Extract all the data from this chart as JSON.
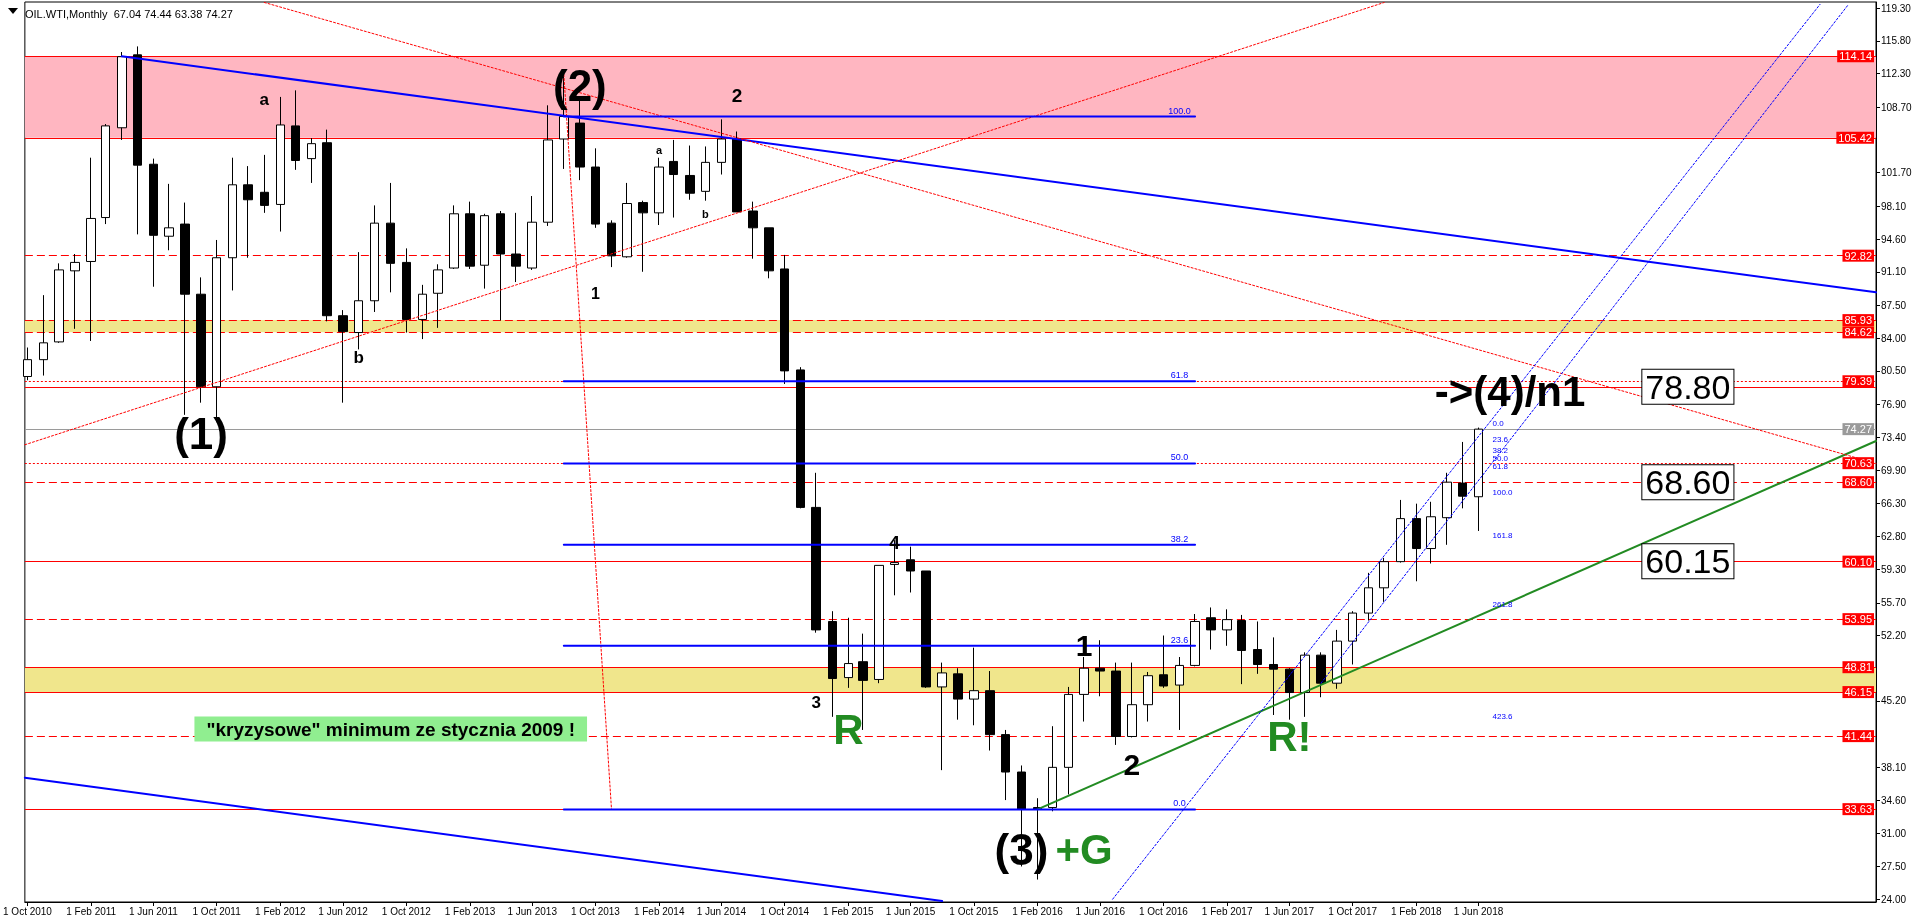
{
  "chart_data": {
    "type": "candlestick",
    "title": "OIL.WTI,Monthly  67.04 74.44 63.38 74.27",
    "x": [
      "2010-10",
      "2010-11",
      "2010-12",
      "2011-01",
      "2011-02",
      "2011-03",
      "2011-04",
      "2011-05",
      "2011-06",
      "2011-07",
      "2011-08",
      "2011-09",
      "2011-10",
      "2011-11",
      "2011-12",
      "2012-01",
      "2012-02",
      "2012-03",
      "2012-04",
      "2012-05",
      "2012-06",
      "2012-07",
      "2012-08",
      "2012-09",
      "2012-10",
      "2012-11",
      "2012-12",
      "2013-01",
      "2013-02",
      "2013-03",
      "2013-04",
      "2013-05",
      "2013-06",
      "2013-07",
      "2013-08",
      "2013-09",
      "2013-10",
      "2013-11",
      "2013-12",
      "2014-01",
      "2014-02",
      "2014-03",
      "2014-04",
      "2014-05",
      "2014-06",
      "2014-07",
      "2014-08",
      "2014-09",
      "2014-10",
      "2014-11",
      "2014-12",
      "2015-01",
      "2015-02",
      "2015-03",
      "2015-04",
      "2015-05",
      "2015-06",
      "2015-07",
      "2015-08",
      "2015-09",
      "2015-10",
      "2015-11",
      "2015-12",
      "2016-01",
      "2016-02",
      "2016-03",
      "2016-04",
      "2016-05",
      "2016-06",
      "2016-07",
      "2016-08",
      "2016-09",
      "2016-10",
      "2016-11",
      "2016-12",
      "2017-01",
      "2017-02",
      "2017-03",
      "2017-04",
      "2017-05",
      "2017-06",
      "2017-07",
      "2017-08",
      "2017-09",
      "2017-10",
      "2017-11",
      "2017-12",
      "2018-01",
      "2018-02",
      "2018-03",
      "2018-04",
      "2018-05",
      "2018-06"
    ],
    "ohlc": [
      [
        79.9,
        83.0,
        79.5,
        81.7
      ],
      [
        81.7,
        88.6,
        80.0,
        83.5
      ],
      [
        83.6,
        92.0,
        83.5,
        91.3
      ],
      [
        91.2,
        93.0,
        85.0,
        92.1
      ],
      [
        92.2,
        103.3,
        83.7,
        96.8
      ],
      [
        96.9,
        106.9,
        96.2,
        106.7
      ],
      [
        106.5,
        114.6,
        105.2,
        114.1
      ],
      [
        114.3,
        115.2,
        95.1,
        102.5
      ],
      [
        102.6,
        103.2,
        89.5,
        95.0
      ],
      [
        94.9,
        100.5,
        93.4,
        95.8
      ],
      [
        96.2,
        98.5,
        75.8,
        88.7
      ],
      [
        88.7,
        90.5,
        77.1,
        78.8
      ],
      [
        78.8,
        94.5,
        75.0,
        92.6
      ],
      [
        92.6,
        103.3,
        89.1,
        100.4
      ],
      [
        100.4,
        102.4,
        92.6,
        98.8
      ],
      [
        99.6,
        103.6,
        97.4,
        98.2
      ],
      [
        98.3,
        109.8,
        95.4,
        106.8
      ],
      [
        106.7,
        110.5,
        102.0,
        103.0
      ],
      [
        103.2,
        105.4,
        100.6,
        104.8
      ],
      [
        104.9,
        106.3,
        85.8,
        86.4
      ],
      [
        86.4,
        87.0,
        77.1,
        84.7
      ],
      [
        84.6,
        93.2,
        82.8,
        88.0
      ],
      [
        88.0,
        98.2,
        86.8,
        96.3
      ],
      [
        96.3,
        100.6,
        88.9,
        92.0
      ],
      [
        92.1,
        93.6,
        84.6,
        86.0
      ],
      [
        86.0,
        89.7,
        83.9,
        88.7
      ],
      [
        88.8,
        91.9,
        85.1,
        91.3
      ],
      [
        91.5,
        98.2,
        91.4,
        97.3
      ],
      [
        97.3,
        98.6,
        91.4,
        91.7
      ],
      [
        91.8,
        97.3,
        89.3,
        97.1
      ],
      [
        97.3,
        97.6,
        85.9,
        93.0
      ],
      [
        93.0,
        97.4,
        90.0,
        91.7
      ],
      [
        91.5,
        99.2,
        91.3,
        96.4
      ],
      [
        96.4,
        108.9,
        96.0,
        105.2
      ],
      [
        105.3,
        112.2,
        102.1,
        107.7
      ],
      [
        107.0,
        109.7,
        100.9,
        102.3
      ],
      [
        102.3,
        104.3,
        95.8,
        96.2
      ],
      [
        96.3,
        96.6,
        91.6,
        92.8
      ],
      [
        92.7,
        100.6,
        92.6,
        98.4
      ],
      [
        98.5,
        98.7,
        91.1,
        97.4
      ],
      [
        97.4,
        103.3,
        96.1,
        102.3
      ],
      [
        102.9,
        105.2,
        96.9,
        101.5
      ],
      [
        101.4,
        104.6,
        98.8,
        99.5
      ],
      [
        99.7,
        104.5,
        98.7,
        102.8
      ],
      [
        102.8,
        107.4,
        101.5,
        105.3
      ],
      [
        105.3,
        106.1,
        97.5,
        97.5
      ],
      [
        97.6,
        98.6,
        92.5,
        95.8
      ],
      [
        95.8,
        95.8,
        90.4,
        91.2
      ],
      [
        91.4,
        92.9,
        79.1,
        80.5
      ],
      [
        80.6,
        80.9,
        65.8,
        65.9
      ],
      [
        65.9,
        69.6,
        52.5,
        52.8
      ],
      [
        53.7,
        54.8,
        43.5,
        47.6
      ],
      [
        47.7,
        54.1,
        46.6,
        49.2
      ],
      [
        49.4,
        52.4,
        42.1,
        47.4
      ],
      [
        47.5,
        59.7,
        47.1,
        59.7
      ],
      [
        59.8,
        62.4,
        56.5,
        60.0
      ],
      [
        60.3,
        61.7,
        56.8,
        59.1
      ],
      [
        59.1,
        59.1,
        46.6,
        46.7
      ],
      [
        46.7,
        49.3,
        37.8,
        48.2
      ],
      [
        48.1,
        48.7,
        43.2,
        45.4
      ],
      [
        45.4,
        50.9,
        42.6,
        46.3
      ],
      [
        46.3,
        48.4,
        39.9,
        41.6
      ],
      [
        41.6,
        42.1,
        34.6,
        37.6
      ],
      [
        37.6,
        38.3,
        27.5,
        33.6
      ],
      [
        33.8,
        34.8,
        26.1,
        33.6
      ],
      [
        33.8,
        42.5,
        33.4,
        38.1
      ],
      [
        38.1,
        46.7,
        35.2,
        45.9
      ],
      [
        45.9,
        49.9,
        43.0,
        48.7
      ],
      [
        48.7,
        51.7,
        45.7,
        48.4
      ],
      [
        48.4,
        49.3,
        40.5,
        41.4
      ],
      [
        41.4,
        49.3,
        41.3,
        44.8
      ],
      [
        44.8,
        48.3,
        43.0,
        47.9
      ],
      [
        48.0,
        52.2,
        46.6,
        46.8
      ],
      [
        46.9,
        49.9,
        42.1,
        49.0
      ],
      [
        49.0,
        54.5,
        48.9,
        53.7
      ],
      [
        54.1,
        55.2,
        50.7,
        52.8
      ],
      [
        52.8,
        55.0,
        51.1,
        53.9
      ],
      [
        53.8,
        54.4,
        47.0,
        50.6
      ],
      [
        50.7,
        53.7,
        48.1,
        49.1
      ],
      [
        49.1,
        52.0,
        43.7,
        48.6
      ],
      [
        48.6,
        48.7,
        43.2,
        46.1
      ],
      [
        46.1,
        50.4,
        43.5,
        50.1
      ],
      [
        50.1,
        50.4,
        45.6,
        47.1
      ],
      [
        47.1,
        52.8,
        46.5,
        51.6
      ],
      [
        51.6,
        54.8,
        49.1,
        54.6
      ],
      [
        54.6,
        58.9,
        53.8,
        57.3
      ],
      [
        57.3,
        60.5,
        55.8,
        60.1
      ],
      [
        60.1,
        66.7,
        60.0,
        64.7
      ],
      [
        64.7,
        66.3,
        58.0,
        61.5
      ],
      [
        61.5,
        66.5,
        59.9,
        64.9
      ],
      [
        64.8,
        69.6,
        61.9,
        68.6
      ],
      [
        68.5,
        72.9,
        65.8,
        67.1
      ],
      [
        67.04,
        74.44,
        63.38,
        74.27
      ]
    ],
    "series": [
      {
        "type": "line",
        "x": [
          "2011-04",
          "2020-07-07"
        ],
        "values": [
          114.14,
          88.9
        ],
        "color": "#0000ff",
        "line_style": "solid"
      },
      {
        "type": "line",
        "x": [
          "2010-09-26",
          "2015-08"
        ],
        "values": [
          37.0,
          23.8
        ],
        "color": "#0000ff",
        "line_style": "solid"
      },
      {
        "type": "line",
        "x": [
          "2016-02",
          "2020-07-07"
        ],
        "values": [
          33.6,
          73.0
        ],
        "color": "#228b22",
        "line_style": "solid"
      },
      {
        "type": "line",
        "x": [
          "2010-09-26",
          "2017-12"
        ],
        "values": [
          72.6,
          119.9
        ],
        "color": "#ff0000",
        "line_style": "dotted"
      },
      {
        "type": "line",
        "x": [
          "2012-01",
          "2020-07-07"
        ],
        "values": [
          119.9,
          70.6
        ],
        "color": "#ff0000",
        "line_style": "dotted"
      },
      {
        "type": "line",
        "x": [
          "2013-08",
          "2013-11"
        ],
        "values": [
          112.2,
          33.6
        ],
        "color": "#ff0000",
        "line_style": "dotted"
      },
      {
        "type": "line",
        "x": [
          "2016-06-25",
          "2020-03-21"
        ],
        "values": [
          24.0,
          119.7
        ],
        "color": "#0000ff",
        "line_style": "dotted"
      },
      {
        "type": "line",
        "x": [
          "2017-08",
          "2020-05-15"
        ],
        "values": [
          47.1,
          119.7
        ],
        "color": "#0000ff",
        "line_style": "dotted"
      },
      {
        "type": "line",
        "x": [
          "2013-08",
          "2016-12"
        ],
        "values": [
          107.7,
          107.7
        ],
        "color": "#0000ff",
        "line_style": "solid"
      },
      {
        "type": "line",
        "x": [
          "2013-08",
          "2016-12"
        ],
        "values": [
          79.4,
          79.4
        ],
        "color": "#0000ff",
        "line_style": "solid"
      },
      {
        "type": "line",
        "x": [
          "2013-08",
          "2016-12"
        ],
        "values": [
          70.6,
          70.6
        ],
        "color": "#0000ff",
        "line_style": "solid"
      },
      {
        "type": "line",
        "x": [
          "2013-08",
          "2016-12"
        ],
        "values": [
          61.9,
          61.9
        ],
        "color": "#0000ff",
        "line_style": "solid"
      },
      {
        "type": "line",
        "x": [
          "2013-08",
          "2016-12"
        ],
        "values": [
          51.1,
          51.1
        ],
        "color": "#0000ff",
        "line_style": "solid"
      },
      {
        "type": "line",
        "x": [
          "2013-08",
          "2016-12"
        ],
        "values": [
          33.6,
          33.6
        ],
        "color": "#0000ff",
        "line_style": "solid"
      }
    ],
    "xlim": [
      "2010-09-26",
      "2020-07-07"
    ],
    "xticks": [
      {
        "value": "2010-10",
        "label": "1 Oct 2010"
      },
      {
        "value": "2011-02",
        "label": "1 Feb 2011"
      },
      {
        "value": "2011-06",
        "label": "1 Jun 2011"
      },
      {
        "value": "2011-10",
        "label": "1 Oct 2011"
      },
      {
        "value": "2012-02",
        "label": "1 Feb 2012"
      },
      {
        "value": "2012-06",
        "label": "1 Jun 2012"
      },
      {
        "value": "2012-10",
        "label": "1 Oct 2012"
      },
      {
        "value": "2013-02",
        "label": "1 Feb 2013"
      },
      {
        "value": "2013-06",
        "label": "1 Jun 2013"
      },
      {
        "value": "2013-10",
        "label": "1 Oct 2013"
      },
      {
        "value": "2014-02",
        "label": "1 Feb 2014"
      },
      {
        "value": "2014-06",
        "label": "1 Jun 2014"
      },
      {
        "value": "2014-10",
        "label": "1 Oct 2014"
      },
      {
        "value": "2015-02",
        "label": "1 Feb 2015"
      },
      {
        "value": "2015-06",
        "label": "1 Jun 2015"
      },
      {
        "value": "2015-10",
        "label": "1 Oct 2015"
      },
      {
        "value": "2016-02",
        "label": "1 Feb 2016"
      },
      {
        "value": "2016-06",
        "label": "1 Jun 2016"
      },
      {
        "value": "2016-10",
        "label": "1 Oct 2016"
      },
      {
        "value": "2017-02",
        "label": "1 Feb 2017"
      },
      {
        "value": "2017-06",
        "label": "1 Jun 2017"
      },
      {
        "value": "2017-10",
        "label": "1 Oct 2017"
      },
      {
        "value": "2018-02",
        "label": "1 Feb 2018"
      },
      {
        "value": "2018-06",
        "label": "1 Jun 2018"
      }
    ],
    "ylim": [
      23.7,
      119.95
    ],
    "yticks": [
      {
        "value": 119.3,
        "label": "119.30"
      },
      {
        "value": 115.8,
        "label": "115.80"
      },
      {
        "value": 112.3,
        "label": "112.30"
      },
      {
        "value": 108.7,
        "label": "108.70"
      },
      {
        "value": 101.7,
        "label": "101.70"
      },
      {
        "value": 98.1,
        "label": "98.10"
      },
      {
        "value": 94.6,
        "label": "94.60"
      },
      {
        "value": 91.1,
        "label": "91.10"
      },
      {
        "value": 87.5,
        "label": "87.50"
      },
      {
        "value": 84.0,
        "label": "84.00"
      },
      {
        "value": 80.5,
        "label": "80.50"
      },
      {
        "value": 76.9,
        "label": "76.90"
      },
      {
        "value": 73.4,
        "label": "73.40"
      },
      {
        "value": 69.9,
        "label": "69.90"
      },
      {
        "value": 66.3,
        "label": "66.30"
      },
      {
        "value": 62.8,
        "label": "62.80"
      },
      {
        "value": 59.3,
        "label": "59.30"
      },
      {
        "value": 55.7,
        "label": "55.70"
      },
      {
        "value": 52.2,
        "label": "52.20"
      },
      {
        "value": 45.2,
        "label": "45.20"
      },
      {
        "value": 38.1,
        "label": "38.10"
      },
      {
        "value": 34.6,
        "label": "34.60"
      },
      {
        "value": 31.0,
        "label": "31.00"
      },
      {
        "value": 27.5,
        "label": "27.50"
      },
      {
        "value": 24.0,
        "label": "24.00"
      }
    ],
    "ref_lines": [
      {
        "axis": "y",
        "value": 114.14,
        "label": "114.14",
        "color": "#ff0000",
        "line_style": "solid"
      },
      {
        "axis": "y",
        "value": 105.42,
        "label": "105.42",
        "color": "#ff0000",
        "line_style": "solid"
      },
      {
        "axis": "y",
        "value": 92.82,
        "label": "92.82",
        "color": "#ff0000",
        "line_style": "dashed"
      },
      {
        "axis": "y",
        "value": 85.93,
        "label": "85.93",
        "color": "#ff0000",
        "line_style": "dashed"
      },
      {
        "axis": "y",
        "value": 84.62,
        "label": "84.62",
        "color": "#ff0000",
        "line_style": "dashed"
      },
      {
        "axis": "y",
        "value": 79.39,
        "label": "79.39",
        "color": "#ff0000",
        "line_style": "dotted"
      },
      {
        "axis": "y",
        "value": 78.78,
        "label": null,
        "color": "#ff0000",
        "line_style": "solid"
      },
      {
        "axis": "y",
        "value": 74.27,
        "label": "74.27",
        "color": "#9a9a9a",
        "line_style": "solid"
      },
      {
        "axis": "y",
        "value": 70.63,
        "label": "70.63",
        "color": "#ff0000",
        "line_style": "dotted"
      },
      {
        "axis": "y",
        "value": 68.6,
        "label": "68.60",
        "color": "#ff0000",
        "line_style": "dashed"
      },
      {
        "axis": "y",
        "value": 60.1,
        "label": "60.10",
        "color": "#ff0000",
        "line_style": "solid"
      },
      {
        "axis": "y",
        "value": 53.95,
        "label": "53.95",
        "color": "#ff0000",
        "line_style": "dashed"
      },
      {
        "axis": "y",
        "value": 48.81,
        "label": "48.81",
        "color": "#ff0000",
        "line_style": "solid"
      },
      {
        "axis": "y",
        "value": 46.15,
        "label": "46.15",
        "color": "#ff0000",
        "line_style": "solid"
      },
      {
        "axis": "y",
        "value": 41.44,
        "label": "41.44",
        "color": "#ff0000",
        "line_style": "dashed"
      },
      {
        "axis": "y",
        "value": 33.63,
        "label": "33.63",
        "color": "#ff0000",
        "line_style": "solid"
      }
    ],
    "bands": [
      {
        "axis": "y",
        "from": 105.42,
        "to": 114.14,
        "color": "#ffb6c1"
      },
      {
        "axis": "y",
        "from": 84.62,
        "to": 85.93,
        "color": "#f0e68c"
      },
      {
        "axis": "y",
        "from": 46.15,
        "to": 48.81,
        "color": "#f0e68c"
      }
    ],
    "annotations": [
      {
        "text": "(1)",
        "x": "2011-09",
        "y": 73.8
      },
      "(2)",
      "a",
      "b",
      "1",
      "a",
      "b",
      "2",
      "3",
      {
        "text": "4",
        "x": "2015-05",
        "y": 62.1
      },
      "R",
      {
        "text": "(3)",
        "x": "2016-01",
        "y": 29.3
      },
      "+G",
      {
        "text": "1",
        "x": "2016-05",
        "y": 51.1
      },
      {
        "text": "2",
        "x": "2016-08",
        "y": 38.4
      },
      {
        "text": "R!",
        "x": "2017-06",
        "y": 41.4
      },
      {
        "text": "->(4)/n1",
        "x": "2018-08",
        "y": 78.3
      },
      {
        "text": "78.80",
        "x": "2019-07-10",
        "y": 78.8
      },
      {
        "text": "68.60",
        "x": "2019-07-10",
        "y": 68.6
      },
      {
        "text": "60.15",
        "x": "2019-07-10",
        "y": 60.15
      },
      "\"kryzysowe\" minimum ze stycznia 2009 !",
      {
        "text": "100.0",
        "x": "2016-11",
        "y": 107.7
      },
      {
        "text": "61.8",
        "x": "2016-11",
        "y": 79.4
      },
      {
        "text": "50.0",
        "x": "2016-11",
        "y": 70.6
      },
      {
        "text": "38.2",
        "x": "2016-11",
        "y": 61.9
      },
      {
        "text": "23.6",
        "x": "2016-11",
        "y": 51.1
      },
      {
        "text": "0.0",
        "x": "2016-11",
        "y": 33.6
      },
      {
        "text": "0.0",
        "x": "2018-06",
        "y": 74.44
      },
      {
        "text": "23.6",
        "x": "2018-06",
        "y": 72.7
      },
      {
        "text": "38.2",
        "x": "2018-06",
        "y": 71.6
      },
      {
        "text": "50.0",
        "x": "2018-06",
        "y": 70.7
      },
      {
        "text": "61.8",
        "x": "2018-06",
        "y": 69.9
      },
      {
        "text": "100.0",
        "x": "2018-06",
        "y": 67.04
      },
      "161.8",
      "261.8",
      "423.6"
    ]
  }
}
